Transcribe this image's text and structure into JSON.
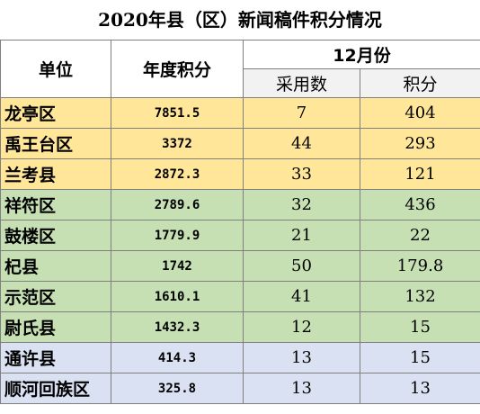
{
  "title": "2020年县（区）新闻稿件积分情况",
  "headers": {
    "unit": "单位",
    "annual": "年度积分",
    "month_group": "12月份",
    "adopted": "采用数",
    "points": "积分"
  },
  "rows": [
    {
      "unit": "龙亭区",
      "annual": "7851.5",
      "adopted": "7",
      "points": "404",
      "tier": "a"
    },
    {
      "unit": "禹王台区",
      "annual": "3372",
      "adopted": "44",
      "points": "293",
      "tier": "a"
    },
    {
      "unit": "兰考县",
      "annual": "2872.3",
      "adopted": "33",
      "points": "121",
      "tier": "a"
    },
    {
      "unit": "祥符区",
      "annual": "2789.6",
      "adopted": "32",
      "points": "436",
      "tier": "b"
    },
    {
      "unit": "鼓楼区",
      "annual": "1779.9",
      "adopted": "21",
      "points": "22",
      "tier": "b"
    },
    {
      "unit": "杞县",
      "annual": "1742",
      "adopted": "50",
      "points": "179.8",
      "tier": "b"
    },
    {
      "unit": "示范区",
      "annual": "1610.1",
      "adopted": "41",
      "points": "132",
      "tier": "b"
    },
    {
      "unit": "尉氏县",
      "annual": "1432.3",
      "adopted": "12",
      "points": "15",
      "tier": "b"
    },
    {
      "unit": "通许县",
      "annual": "414.3",
      "adopted": "13",
      "points": "15",
      "tier": "c"
    },
    {
      "unit": "顺河回族区",
      "annual": "325.8",
      "adopted": "13",
      "points": "13",
      "tier": "c"
    }
  ],
  "colors": {
    "tier_a": "#ffe699",
    "tier_b": "#c6e0b4",
    "tier_c": "#d9e1f2",
    "border": "#7f7f7f"
  }
}
